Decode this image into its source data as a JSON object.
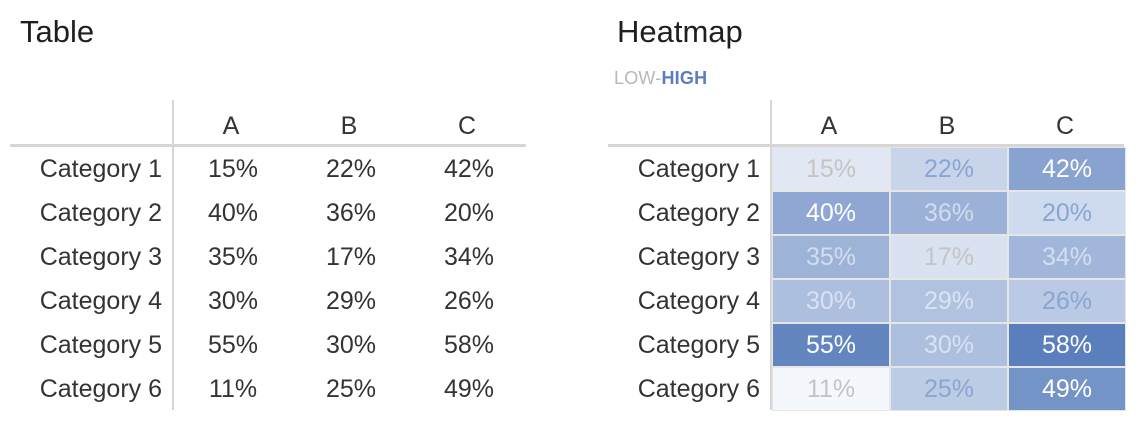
{
  "table_title": "Table",
  "heatmap_title": "Heatmap",
  "legend": {
    "low": "LOW",
    "sep": "-",
    "high": "HIGH",
    "low_color": "#f4f7fc",
    "high_color": "#5b7fbd"
  },
  "chart_data": [
    {
      "type": "table",
      "title": "Table",
      "columns": [
        "A",
        "B",
        "C"
      ],
      "rows": [
        {
          "label": "Category 1",
          "values": [
            "15%",
            "22%",
            "42%"
          ]
        },
        {
          "label": "Category 2",
          "values": [
            "40%",
            "36%",
            "20%"
          ]
        },
        {
          "label": "Category 3",
          "values": [
            "35%",
            "17%",
            "34%"
          ]
        },
        {
          "label": "Category 4",
          "values": [
            "30%",
            "29%",
            "26%"
          ]
        },
        {
          "label": "Category 5",
          "values": [
            "55%",
            "30%",
            "58%"
          ]
        },
        {
          "label": "Category 6",
          "values": [
            "11%",
            "25%",
            "49%"
          ]
        }
      ]
    },
    {
      "type": "heatmap",
      "title": "Heatmap",
      "columns": [
        "A",
        "B",
        "C"
      ],
      "rows": [
        {
          "label": "Category 1",
          "values": [
            15,
            22,
            42
          ]
        },
        {
          "label": "Category 2",
          "values": [
            40,
            36,
            20
          ]
        },
        {
          "label": "Category 3",
          "values": [
            35,
            17,
            34
          ]
        },
        {
          "label": "Category 4",
          "values": [
            30,
            29,
            26
          ]
        },
        {
          "label": "Category 5",
          "values": [
            55,
            30,
            58
          ]
        },
        {
          "label": "Category 6",
          "values": [
            11,
            25,
            49
          ]
        }
      ],
      "unit": "%",
      "color_low": "#f4f7fc",
      "color_high": "#5b7fbd"
    }
  ]
}
